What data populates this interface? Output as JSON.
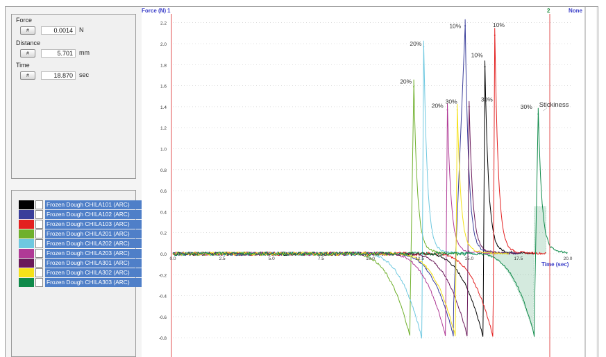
{
  "readouts": {
    "force": {
      "label": "Force",
      "button": "#",
      "value": "0.0014",
      "unit": "N"
    },
    "distance": {
      "label": "Distance",
      "button": "#",
      "value": "5.701",
      "unit": "mm"
    },
    "time": {
      "label": "Time",
      "button": "#",
      "value": "18.870",
      "unit": "sec"
    }
  },
  "legend": [
    {
      "label": "Frozen Dough CHILA101 (ARC)",
      "color": "#000000"
    },
    {
      "label": "Frozen Dough CHILA102 (ARC)",
      "color": "#3a3e9a"
    },
    {
      "label": "Frozen Dough CHILA103 (ARC)",
      "color": "#e32020"
    },
    {
      "label": "Frozen Dough CHILA201 (ARC)",
      "color": "#6fb02c"
    },
    {
      "label": "Frozen Dough CHILA202 (ARC)",
      "color": "#6ec8e0"
    },
    {
      "label": "Frozen Dough CHILA203 (ARC)",
      "color": "#b03a96"
    },
    {
      "label": "Frozen Dough CHILA301 (ARC)",
      "color": "#6a1a5a"
    },
    {
      "label": "Frozen Dough CHILA302 (ARC)",
      "color": "#f5e21a"
    },
    {
      "label": "Frozen Dough CHILA303 (ARC)",
      "color": "#0f8a4a"
    }
  ],
  "chart_data": {
    "type": "line",
    "ylabel": "Force (N)",
    "xlabel": "Time (sec)",
    "marker_top_left": "1",
    "marker_top_right": "2",
    "marker_none": "None",
    "ylim": [
      -0.9,
      2.2
    ],
    "xlim": [
      0,
      20
    ],
    "yticks": [
      "2.2",
      "2.0",
      "1.8",
      "1.6",
      "1.4",
      "1.2",
      "1.0",
      "0.8",
      "0.6",
      "0.4",
      "0.2",
      "0.0",
      "-0.2",
      "-0.4",
      "-0.6",
      "-0.8"
    ],
    "xticks": [
      "0.0",
      "2.5",
      "5.0",
      "7.5",
      "10.0",
      "12.5",
      "15.0",
      "17.5",
      "20.0"
    ],
    "series": [
      {
        "name": "Frozen Dough CHILA101 (ARC)",
        "color": "#000000",
        "peak_time": 15.8,
        "peak": 1.78,
        "min_time": 15.7,
        "min": -0.78
      },
      {
        "name": "Frozen Dough CHILA102 (ARC)",
        "color": "#3a3e9a",
        "peak_time": 14.8,
        "peak": 2.17,
        "min_time": 14.2,
        "min": -0.78
      },
      {
        "name": "Frozen Dough CHILA103 (ARC)",
        "color": "#e32020",
        "peak_time": 16.3,
        "peak": 2.08,
        "min_time": 16.2,
        "min": -0.78
      },
      {
        "name": "Frozen Dough CHILA201 (ARC)",
        "color": "#6fb02c",
        "peak_time": 12.2,
        "peak": 1.59,
        "min_time": 12.0,
        "min": -0.78
      },
      {
        "name": "Frozen Dough CHILA202 (ARC)",
        "color": "#6ec8e0",
        "peak_time": 12.7,
        "peak": 1.97,
        "min_time": 12.6,
        "min": -0.8
      },
      {
        "name": "Frozen Dough CHILA203 (ARC)",
        "color": "#b03a96",
        "peak_time": 13.9,
        "peak": 1.37,
        "min_time": 13.8,
        "min": -0.78
      },
      {
        "name": "Frozen Dough CHILA301 (ARC)",
        "color": "#6a1a5a",
        "peak_time": 15.0,
        "peak": 1.4,
        "min_time": 14.9,
        "min": -0.78
      },
      {
        "name": "Frozen Dough CHILA302 (ARC)",
        "color": "#f5e21a",
        "peak_time": 14.4,
        "peak": 1.37,
        "min_time": 14.3,
        "min": -0.78
      },
      {
        "name": "Frozen Dough CHILA303 (ARC)",
        "color": "#0f8a4a",
        "peak_time": 18.5,
        "peak": 1.33,
        "min_time": 18.3,
        "min": -0.78
      }
    ],
    "annotations": [
      {
        "text": "20%",
        "x": 11.8,
        "y": 1.62
      },
      {
        "text": "20%",
        "x": 12.3,
        "y": 1.98
      },
      {
        "text": "20%",
        "x": 13.4,
        "y": 1.39
      },
      {
        "text": "10%",
        "x": 14.3,
        "y": 2.15
      },
      {
        "text": "10%",
        "x": 15.4,
        "y": 1.87
      },
      {
        "text": "10%",
        "x": 16.5,
        "y": 2.16
      },
      {
        "text": "30%",
        "x": 14.1,
        "y": 1.43
      },
      {
        "text": "30%",
        "x": 15.9,
        "y": 1.45
      },
      {
        "text": "30%",
        "x": 17.9,
        "y": 1.38
      },
      {
        "text": "Stickiness",
        "x": 19.3,
        "y": 1.4
      }
    ]
  }
}
